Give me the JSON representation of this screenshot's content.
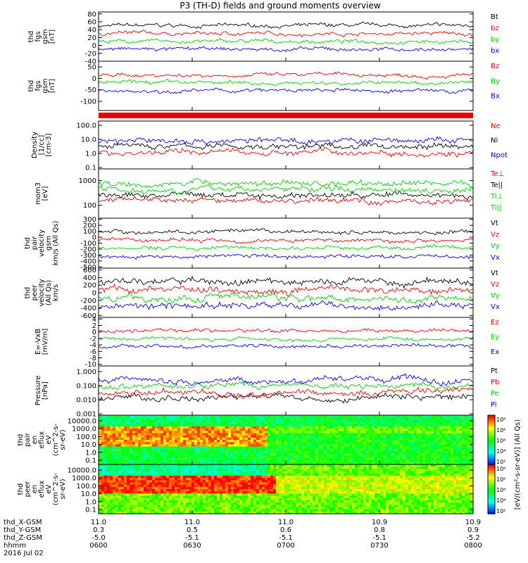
{
  "title": "P3 (TH-D) fields and ground moments overview",
  "colors": {
    "black": "#000000",
    "red": "#ee0000",
    "green": "#00d000",
    "blue": "#0000ee"
  },
  "chart_data": [
    {
      "type": "line",
      "name": "fgs-gsm",
      "ylabel_lines": [
        "thd",
        "fgs",
        "gsm",
        "[nT]"
      ],
      "yticks": [
        80,
        60,
        40,
        20,
        0,
        -20,
        -40
      ],
      "ylim": [
        -40,
        85
      ],
      "legend": [
        {
          "text": "Bt",
          "color": "black"
        },
        {
          "text": "bz",
          "color": "red"
        },
        {
          "text": "by",
          "color": "green"
        },
        {
          "text": "bx",
          "color": "blue"
        }
      ]
    },
    {
      "type": "line",
      "name": "fgs-gsm-dc",
      "ylabel_lines": [
        "thd",
        "fgs",
        "gsm",
        "[nT]"
      ],
      "yticks": [
        -100,
        -50,
        0,
        50
      ],
      "ylim": [
        -140,
        75
      ],
      "legend": [
        {
          "text": "Bz",
          "color": "red"
        },
        {
          "text": "By",
          "color": "green"
        },
        {
          "text": "Bx",
          "color": "blue"
        }
      ]
    },
    {
      "type": "line",
      "name": "density",
      "log": true,
      "ylabel_lines": [
        "Density",
        "[1/cc]",
        "[cm-3]"
      ],
      "yticks": [
        "100.0",
        "10.0",
        "1.0",
        "0.1"
      ],
      "ylim": [
        0.08,
        200
      ],
      "legend": [
        {
          "text": "Ne",
          "color": "red"
        },
        {
          "text": "Ni",
          "color": "black"
        },
        {
          "text": "Npot",
          "color": "blue"
        }
      ]
    },
    {
      "type": "line",
      "name": "temperature",
      "log": true,
      "ylabel_lines": [
        "mom3",
        "[eV]"
      ],
      "yticks": [
        "1000",
        "100"
      ],
      "ylim": [
        30,
        3000
      ],
      "legend": [
        {
          "text": "Te⊥",
          "color": "red"
        },
        {
          "text": "Te||",
          "color": "black"
        },
        {
          "text": "Ti⊥",
          "color": "green"
        },
        {
          "text": "Ti||",
          "color": "green"
        }
      ]
    },
    {
      "type": "line",
      "name": "pair-velocity",
      "ylabel_lines": [
        "thd",
        "pair",
        "velocity",
        "gsm",
        "km/s (All Qs)"
      ],
      "yticks": [
        300,
        200,
        100,
        0,
        -100,
        -200,
        -300,
        -400,
        -500
      ],
      "ylim": [
        -520,
        320
      ],
      "legend": [
        {
          "text": "Vt",
          "color": "black"
        },
        {
          "text": "Vz",
          "color": "red"
        },
        {
          "text": "Vy",
          "color": "green"
        },
        {
          "text": "Vx",
          "color": "blue"
        }
      ]
    },
    {
      "type": "line",
      "name": "peer-velocity",
      "ylabel_lines": [
        "thd",
        "peer",
        "velocity",
        "(All Qs)",
        "km/s"
      ],
      "yticks": [
        600,
        400,
        200,
        0,
        -200,
        -400,
        -600
      ],
      "ylim": [
        -650,
        650
      ],
      "legend": [
        {
          "text": "Vt",
          "color": "black"
        },
        {
          "text": "Vz",
          "color": "red"
        },
        {
          "text": "Vy",
          "color": "green"
        },
        {
          "text": "Vx",
          "color": "blue"
        }
      ]
    },
    {
      "type": "line",
      "name": "efield",
      "ylabel_lines": [
        "E=-VxB",
        "[mV/m]"
      ],
      "yticks": [
        4,
        2,
        0,
        -2,
        -4,
        -6,
        -8,
        -10
      ],
      "ylim": [
        -10.5,
        4.5
      ],
      "legend": [
        {
          "text": "Ez",
          "color": "red"
        },
        {
          "text": "Ey",
          "color": "green"
        },
        {
          "text": "Ex",
          "color": "blue"
        }
      ]
    },
    {
      "type": "line",
      "name": "pressure",
      "log": true,
      "ylabel_lines": [
        "Pressure",
        "[nPa]"
      ],
      "yticks": [
        "1.000",
        "0.100",
        "0.010",
        "0.001"
      ],
      "ylim": [
        0.0008,
        2.5
      ],
      "legend": [
        {
          "text": "Pt",
          "color": "black"
        },
        {
          "text": "Pb",
          "color": "red"
        },
        {
          "text": "Pe",
          "color": "green"
        },
        {
          "text": "Pi",
          "color": "blue"
        }
      ]
    },
    {
      "type": "heatmap",
      "name": "pair-en-eflux",
      "ylabel_lines": [
        "thd",
        "pair",
        "en",
        "eflux",
        "eV",
        "(cm^2-s-",
        "sr-eV)"
      ],
      "yticks": [
        "10000.0",
        "1000.0",
        "100.0",
        "10.0",
        "1.0",
        "0.1"
      ]
    },
    {
      "type": "heatmap",
      "name": "peer-en-eflux",
      "ylabel_lines": [
        "thd",
        "peer",
        "en",
        "eflux",
        "eV",
        "(cm^2-s-",
        "sr-eV)"
      ],
      "yticks": [
        "10000.0",
        "1000.0",
        "100.0",
        "10.0",
        "1.0",
        "0.1"
      ]
    }
  ],
  "colorbar": {
    "ticks": [
      "10⁸",
      "10⁶",
      "10⁶",
      "10⁴",
      "10²",
      "10⁸",
      "10⁶",
      "10⁶",
      "10⁴",
      "10²"
    ],
    "label": "[eV/(cm²-s-sr-eV)] (All Qs)"
  },
  "xaxis": {
    "rows": [
      {
        "label": "thd_X-GSM",
        "values": [
          "11.0",
          "11.0",
          "11.0",
          "10.9",
          "10.9"
        ]
      },
      {
        "label": "thd_Y-GSM",
        "values": [
          "0.3",
          "0.5",
          "0.6",
          "0.8",
          "0.9"
        ]
      },
      {
        "label": "thd_Z-GSM",
        "values": [
          "-5.0",
          "-5.1",
          "-5.1",
          "-5.1",
          "-5.2"
        ]
      },
      {
        "label": "hhmm",
        "values": [
          "0600",
          "0630",
          "0700",
          "0730",
          "0800"
        ]
      }
    ],
    "date": "2016 Jul 02"
  }
}
